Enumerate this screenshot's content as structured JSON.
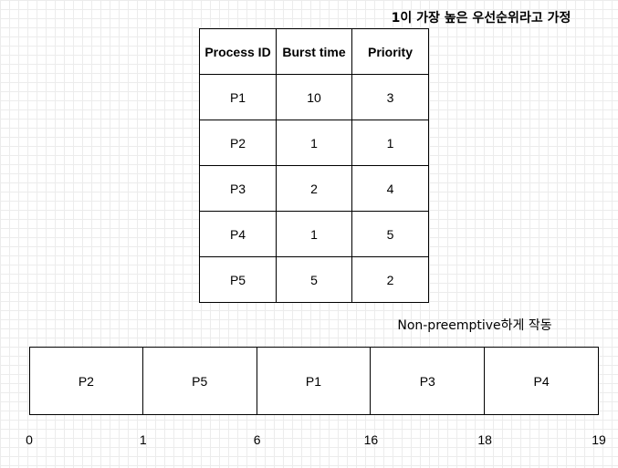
{
  "note_top": "1이 가장 높은 우선순위라고 가정",
  "table": {
    "headers": [
      "Process ID",
      "Burst time",
      "Priority"
    ],
    "rows": [
      [
        "P1",
        "10",
        "3"
      ],
      [
        "P2",
        "1",
        "1"
      ],
      [
        "P3",
        "2",
        "4"
      ],
      [
        "P4",
        "1",
        "5"
      ],
      [
        "P5",
        "5",
        "2"
      ]
    ]
  },
  "note_mode": "Non-preemptive하게 작동",
  "gantt": {
    "segments": [
      {
        "label": "P2",
        "start": 0,
        "end": 1
      },
      {
        "label": "P5",
        "start": 1,
        "end": 6
      },
      {
        "label": "P1",
        "start": 6,
        "end": 16
      },
      {
        "label": "P3",
        "start": 16,
        "end": 18
      },
      {
        "label": "P4",
        "start": 18,
        "end": 19
      }
    ],
    "ticks": [
      "0",
      "1",
      "6",
      "16",
      "18",
      "19"
    ]
  }
}
